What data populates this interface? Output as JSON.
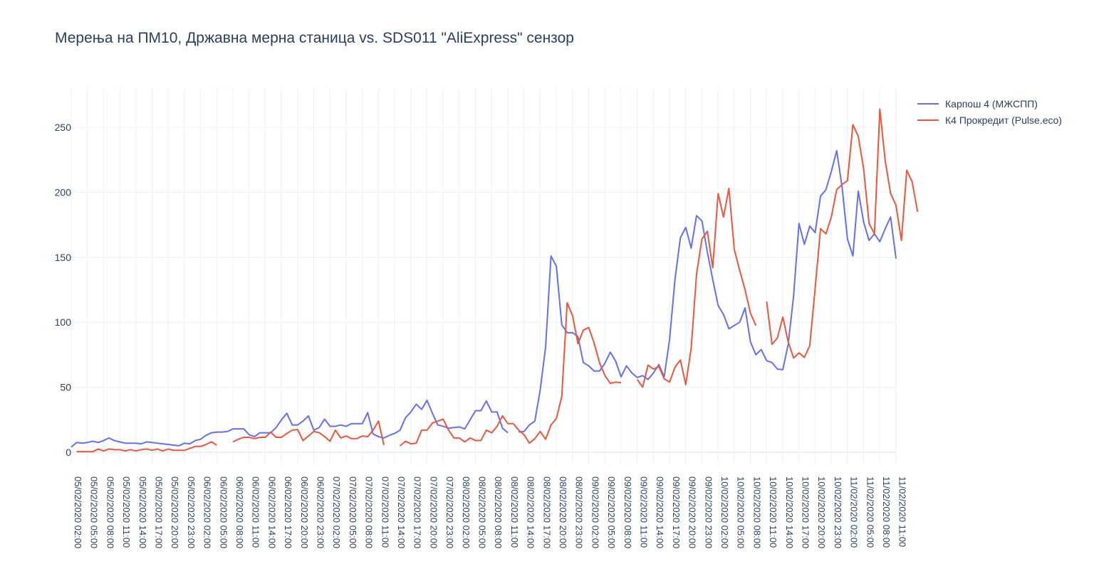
{
  "chart_data": {
    "type": "line",
    "title": "Мерења на ПМ10, Државна мерна станица vs. SDS011 \"AliExpress\" сензор",
    "xlabel": "",
    "ylabel": "",
    "ylim": [
      -10,
      280
    ],
    "yticks": [
      0,
      50,
      100,
      150,
      200,
      250
    ],
    "grid": true,
    "legend_position": "top-right",
    "x_tick_labels": [
      "05/02/2020 02:00",
      "05/02/2020 05:00",
      "05/02/2020 08:00",
      "05/02/2020 11:00",
      "05/02/2020 14:00",
      "05/02/2020 17:00",
      "05/02/2020 20:00",
      "05/02/2020 23:00",
      "06/02/2020 02:00",
      "06/02/2020 05:00",
      "06/02/2020 08:00",
      "06/02/2020 11:00",
      "06/02/2020 14:00",
      "06/02/2020 17:00",
      "06/02/2020 20:00",
      "06/02/2020 23:00",
      "07/02/2020 02:00",
      "07/02/2020 05:00",
      "07/02/2020 08:00",
      "07/02/2020 11:00",
      "07/02/2020 14:00",
      "07/02/2020 17:00",
      "07/02/2020 20:00",
      "07/02/2020 23:00",
      "08/02/2020 02:00",
      "08/02/2020 05:00",
      "08/02/2020 08:00",
      "08/02/2020 11:00",
      "08/02/2020 14:00",
      "08/02/2020 17:00",
      "08/02/2020 20:00",
      "08/02/2020 23:00",
      "09/02/2020 02:00",
      "09/02/2020 05:00",
      "09/02/2020 08:00",
      "09/02/2020 11:00",
      "09/02/2020 14:00",
      "09/02/2020 17:00",
      "09/02/2020 20:00",
      "09/02/2020 23:00",
      "10/02/2020 02:00",
      "10/02/2020 05:00",
      "10/02/2020 08:00",
      "10/02/2020 11:00",
      "10/02/2020 14:00",
      "10/02/2020 17:00",
      "10/02/2020 20:00",
      "10/02/2020 23:00",
      "11/02/2020 02:00",
      "11/02/2020 05:00",
      "11/02/2020 08:00",
      "11/02/2020 11:00"
    ],
    "x_start": "05/02/2020 02:00",
    "x_end": "11/02/2020 13:00",
    "series": [
      {
        "name": "Карпош 4 (МЖСПП)",
        "color": "#636efa",
        "values": [
          4,
          7.5,
          7,
          7.5,
          8.5,
          7.5,
          9,
          11,
          9,
          8,
          7,
          7,
          7,
          6.5,
          8,
          7.5,
          7,
          6.5,
          6,
          5.5,
          5,
          7,
          6.5,
          9,
          10,
          13,
          15,
          15.5,
          15.5,
          16,
          18,
          18,
          18,
          13.5,
          12,
          15,
          15,
          15,
          19,
          25,
          30,
          21,
          21,
          24,
          28,
          17,
          19,
          25.5,
          20,
          20,
          21,
          20,
          22,
          22,
          22,
          30.5,
          14,
          12,
          11,
          13,
          14.5,
          17,
          26.5,
          31,
          37,
          33,
          40,
          30,
          21,
          20,
          18.5,
          19,
          19.5,
          18,
          25,
          32,
          32,
          39.5,
          31,
          31,
          18.5,
          15,
          null,
          15.5,
          16,
          21,
          24,
          48,
          81,
          151,
          143,
          98,
          92,
          92,
          89,
          69,
          66.5,
          62.5,
          62.5,
          68.5,
          77,
          70,
          58,
          66.5,
          61,
          57.5,
          59,
          56,
          61,
          67.5,
          58,
          87,
          133,
          165,
          173,
          157,
          182,
          178,
          154,
          133,
          113,
          106,
          95,
          97.5,
          100,
          111,
          85,
          75,
          79,
          70.5,
          69,
          64,
          63.5,
          83,
          120,
          176,
          160,
          174,
          169,
          197,
          202,
          216,
          232,
          204,
          164,
          151,
          201,
          177,
          163,
          168,
          162,
          172,
          181,
          149
        ]
      },
      {
        "name": "К4 Прокредит (Pulse.eco)",
        "color": "#ef553b",
        "values": [
          null,
          0.5,
          0.5,
          0.5,
          0.5,
          2.5,
          1,
          2.5,
          2,
          2,
          1,
          2,
          1,
          2,
          2.5,
          1.5,
          2.5,
          1,
          2.5,
          1.5,
          1.5,
          1.5,
          3,
          4.5,
          4.5,
          6,
          8,
          5.5,
          null,
          null,
          8,
          10,
          11.5,
          11.5,
          10.5,
          11.5,
          11.5,
          15.5,
          11.5,
          11.5,
          14.5,
          17,
          17.5,
          9,
          12.5,
          16,
          15,
          12,
          8.5,
          17,
          11,
          12.5,
          10.5,
          10.5,
          12.5,
          12,
          17,
          24,
          5.5,
          null,
          null,
          5,
          8.5,
          6.5,
          7,
          17,
          17,
          22.5,
          24,
          25.5,
          17,
          11,
          11,
          8,
          11,
          9,
          9,
          17,
          15,
          20,
          28,
          22,
          22,
          17,
          13.5,
          7,
          10.5,
          16,
          10,
          21,
          26,
          43,
          115,
          105,
          83.5,
          94,
          96,
          84,
          69,
          59,
          53,
          54,
          53.5,
          null,
          null,
          56,
          50,
          67,
          64,
          66,
          56.5,
          54,
          65.5,
          71,
          52,
          80,
          137,
          164,
          170,
          142,
          199,
          181,
          203,
          156,
          140,
          125,
          107,
          97.5,
          null,
          116,
          83,
          88,
          104,
          85,
          72.5,
          76.5,
          73,
          82,
          126,
          172,
          168,
          181,
          202,
          206,
          209,
          252,
          243,
          218,
          176,
          168,
          264,
          224,
          199,
          190,
          163,
          217,
          208,
          185
        ]
      }
    ]
  }
}
